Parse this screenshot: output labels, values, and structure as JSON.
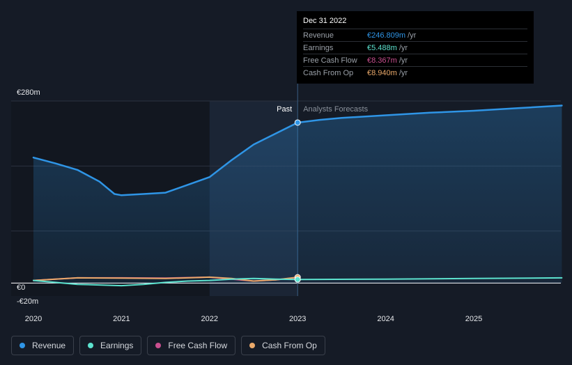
{
  "chart_data": {
    "type": "line",
    "title": "",
    "ylim": [
      -20,
      280
    ],
    "y_tick_labels": [
      "€280m",
      "€0",
      "-€20m"
    ],
    "x_tick_labels": [
      "2020",
      "2021",
      "2022",
      "2023",
      "2024",
      "2025"
    ],
    "divider_labels": {
      "past": "Past",
      "forecast": "Analysts Forecasts"
    },
    "highlight_range": [
      2022.0,
      2023.0
    ],
    "divider_x": 2023.0,
    "series": [
      {
        "name": "Revenue",
        "color": "#2f95e6",
        "points": [
          [
            2020.0,
            193
          ],
          [
            2020.25,
            184
          ],
          [
            2020.5,
            174
          ],
          [
            2020.75,
            156
          ],
          [
            2020.92,
            137
          ],
          [
            2021.0,
            135
          ],
          [
            2021.25,
            137
          ],
          [
            2021.5,
            139
          ],
          [
            2021.75,
            151
          ],
          [
            2022.0,
            163
          ],
          [
            2022.25,
            189
          ],
          [
            2022.5,
            213
          ],
          [
            2022.75,
            230
          ],
          [
            2023.0,
            246.8
          ]
        ],
        "forecast": [
          [
            2023.0,
            246.8
          ],
          [
            2023.25,
            251
          ],
          [
            2023.5,
            254
          ],
          [
            2024.0,
            258
          ],
          [
            2024.5,
            262
          ],
          [
            2025.0,
            265
          ],
          [
            2025.5,
            269
          ],
          [
            2026.0,
            273
          ]
        ]
      },
      {
        "name": "Earnings",
        "color": "#5de3cf",
        "points": [
          [
            2020.0,
            4
          ],
          [
            2020.25,
            1
          ],
          [
            2020.5,
            -2
          ],
          [
            2020.75,
            -3
          ],
          [
            2021.0,
            -4
          ],
          [
            2021.25,
            -2
          ],
          [
            2021.5,
            1
          ],
          [
            2021.75,
            3
          ],
          [
            2022.0,
            4
          ],
          [
            2022.25,
            6
          ],
          [
            2022.5,
            7
          ],
          [
            2022.75,
            6
          ],
          [
            2023.0,
            5.5
          ]
        ],
        "forecast": [
          [
            2023.0,
            5.5
          ],
          [
            2024.0,
            6
          ],
          [
            2025.0,
            7
          ],
          [
            2026.0,
            8
          ]
        ]
      },
      {
        "name": "Free Cash Flow",
        "color": "#c94f8f",
        "points": [
          [
            2020.0,
            4
          ],
          [
            2020.5,
            8
          ],
          [
            2021.0,
            8
          ],
          [
            2021.5,
            7.5
          ],
          [
            2022.0,
            9
          ],
          [
            2022.25,
            6
          ],
          [
            2022.5,
            3
          ],
          [
            2022.75,
            5
          ],
          [
            2023.0,
            8.4
          ]
        ],
        "forecast": []
      },
      {
        "name": "Cash From Op",
        "color": "#eaa96a",
        "points": [
          [
            2020.0,
            4
          ],
          [
            2020.25,
            6
          ],
          [
            2020.5,
            8
          ],
          [
            2021.0,
            7.5
          ],
          [
            2021.5,
            7
          ],
          [
            2021.75,
            8
          ],
          [
            2022.0,
            9
          ],
          [
            2022.25,
            7
          ],
          [
            2022.5,
            3
          ],
          [
            2022.75,
            5
          ],
          [
            2023.0,
            8.9
          ]
        ],
        "forecast": []
      }
    ]
  },
  "tooltip": {
    "title": "Dec 31 2022",
    "rows": [
      {
        "label": "Revenue",
        "value": "€246.809m",
        "unit": "/yr",
        "color": "#2f95e6"
      },
      {
        "label": "Earnings",
        "value": "€5.488m",
        "unit": "/yr",
        "color": "#5de3cf"
      },
      {
        "label": "Free Cash Flow",
        "value": "€8.367m",
        "unit": "/yr",
        "color": "#c94f8f"
      },
      {
        "label": "Cash From Op",
        "value": "€8.940m",
        "unit": "/yr",
        "color": "#eaa96a"
      }
    ]
  },
  "legend": [
    {
      "label": "Revenue",
      "color": "#2f95e6"
    },
    {
      "label": "Earnings",
      "color": "#5de3cf"
    },
    {
      "label": "Free Cash Flow",
      "color": "#c94f8f"
    },
    {
      "label": "Cash From Op",
      "color": "#eaa96a"
    }
  ]
}
